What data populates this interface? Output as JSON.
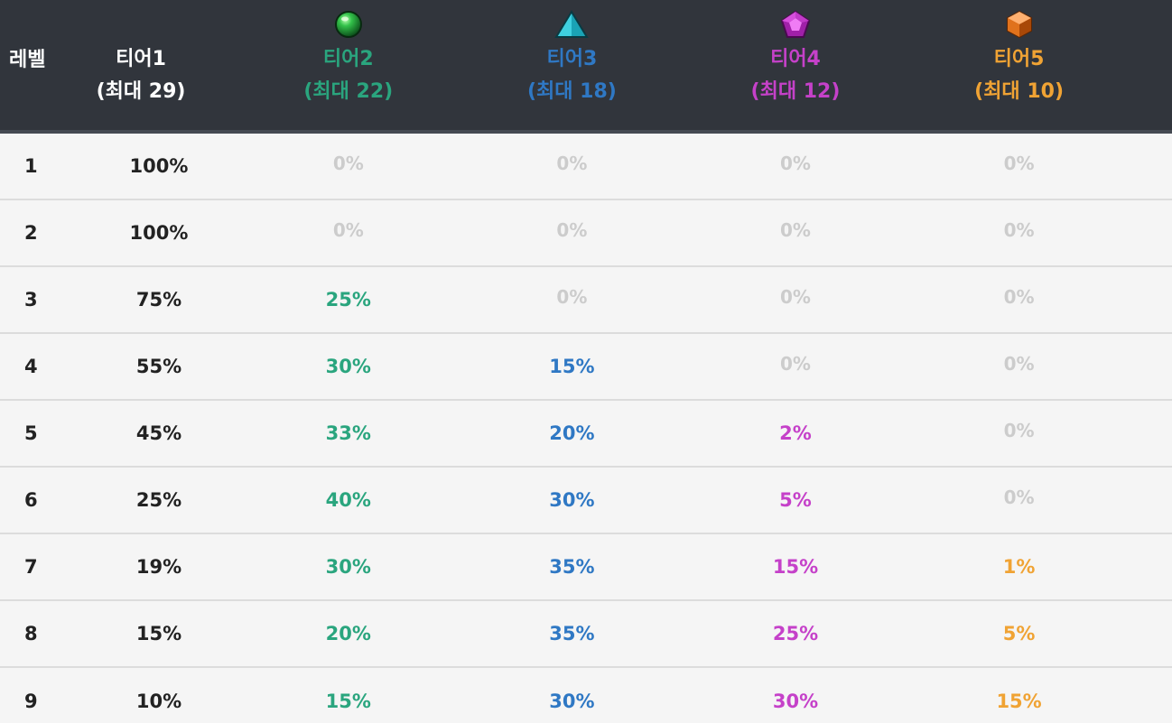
{
  "header": {
    "level_label": "레벨",
    "tiers": [
      {
        "label": "티어1",
        "max": "(최대 29)",
        "color": "#ffffff",
        "icon": ""
      },
      {
        "label": "티어2",
        "max": "(최대 22)",
        "color": "#2aa57e",
        "icon": "green-orb-icon"
      },
      {
        "label": "티어3",
        "max": "(최대 18)",
        "color": "#2f78c4",
        "icon": "cyan-pyramid-gem-icon"
      },
      {
        "label": "티어4",
        "max": "(최대 12)",
        "color": "#c541c9",
        "icon": "purple-pentagon-gem-icon"
      },
      {
        "label": "티어5",
        "max": "(최대 10)",
        "color": "#f0a334",
        "icon": "orange-hex-gem-icon"
      }
    ]
  },
  "rows": [
    {
      "level": "1",
      "values": [
        "100%",
        "0%",
        "0%",
        "0%",
        "0%"
      ]
    },
    {
      "level": "2",
      "values": [
        "100%",
        "0%",
        "0%",
        "0%",
        "0%"
      ]
    },
    {
      "level": "3",
      "values": [
        "75%",
        "25%",
        "0%",
        "0%",
        "0%"
      ]
    },
    {
      "level": "4",
      "values": [
        "55%",
        "30%",
        "15%",
        "0%",
        "0%"
      ]
    },
    {
      "level": "5",
      "values": [
        "45%",
        "33%",
        "20%",
        "2%",
        "0%"
      ]
    },
    {
      "level": "6",
      "values": [
        "25%",
        "40%",
        "30%",
        "5%",
        "0%"
      ]
    },
    {
      "level": "7",
      "values": [
        "19%",
        "30%",
        "35%",
        "15%",
        "1%"
      ]
    },
    {
      "level": "8",
      "values": [
        "15%",
        "20%",
        "35%",
        "25%",
        "5%"
      ]
    },
    {
      "level": "9",
      "values": [
        "10%",
        "15%",
        "30%",
        "30%",
        "15%"
      ]
    }
  ],
  "colors": {
    "header_bg": "#31353c",
    "zero": "#cccccc",
    "body_text": "#222222",
    "row_bg": "#f5f5f5"
  }
}
